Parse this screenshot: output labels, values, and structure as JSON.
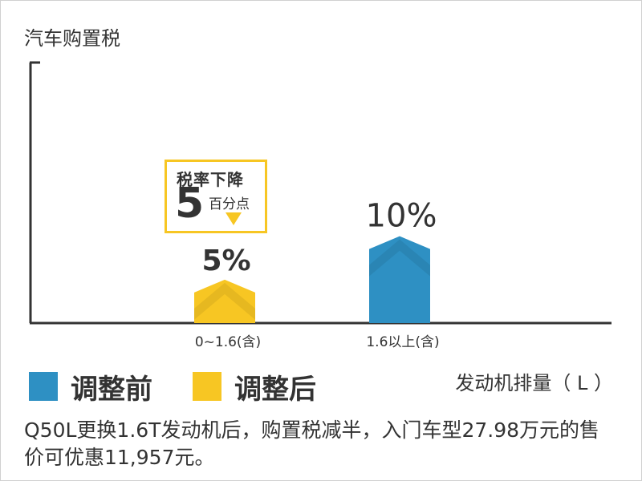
{
  "chart_data": {
    "type": "bar",
    "title": "汽车购置税",
    "categories": [
      "0~1.6(含)",
      "1.6以上(含)"
    ],
    "series": [
      {
        "name": "调整前",
        "color": "#2e90c3",
        "values": [
          null,
          10
        ]
      },
      {
        "name": "调整后",
        "color": "#f7c623",
        "values": [
          5,
          null
        ]
      }
    ],
    "data_labels": [
      "5%",
      "10%"
    ],
    "xlabel": "发动机排量（ L ）",
    "ylabel": "",
    "ylim": [
      0,
      30
    ],
    "grid": false,
    "legend_position": "bottom-left"
  },
  "callout": {
    "title": "税率下降",
    "number": "5",
    "unit": "百分点",
    "arrow_color": "#f7c623"
  },
  "footnote": "Q50L更换1.6T发动机后，购置税减半，入门车型27.98万元的售价可优惠11,957元。"
}
